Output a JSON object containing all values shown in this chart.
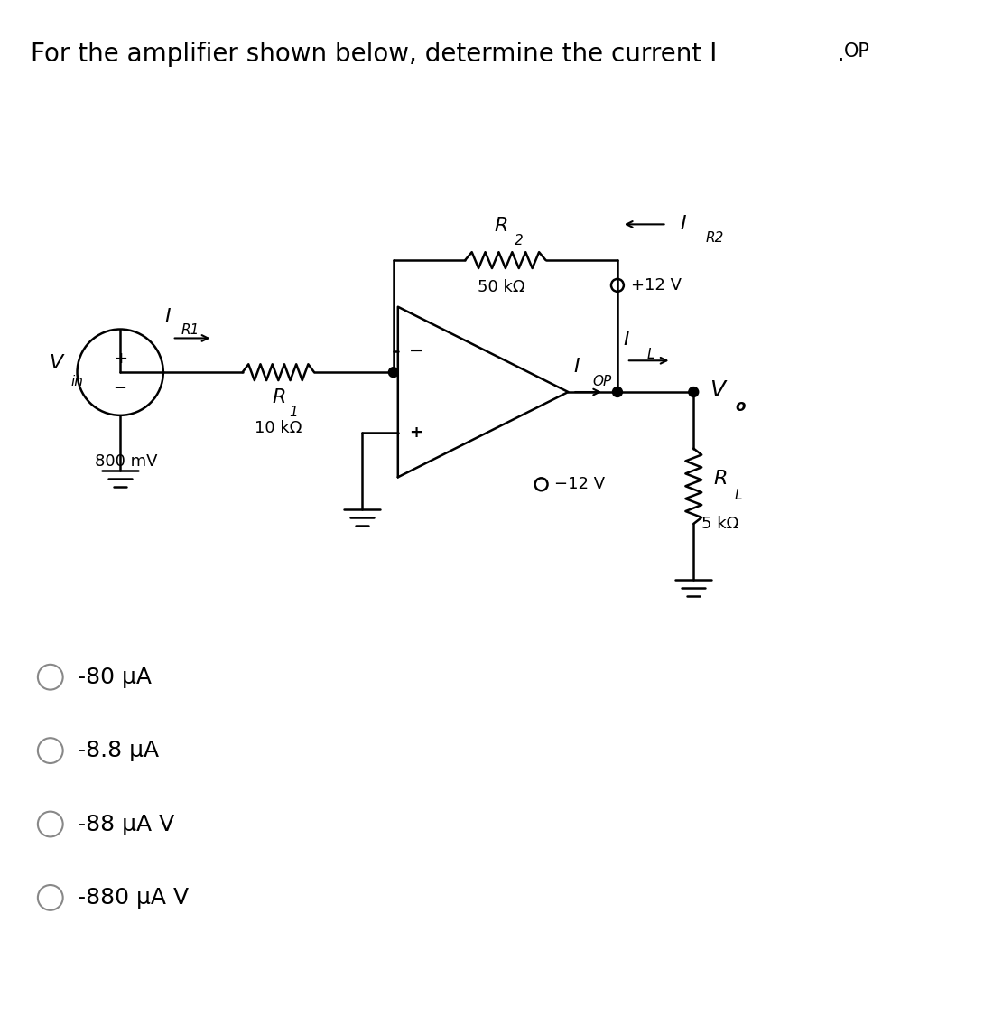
{
  "title": "For the amplifier shown below, determine the current I",
  "title_sub": "OP",
  "title_fontsize": 20,
  "bg_color": "#ffffff",
  "options": [
    "-80 μA",
    "-8.8 μA",
    "-88 μA V",
    "-880 μA V"
  ],
  "option_fontsize": 18,
  "lw": 1.8
}
